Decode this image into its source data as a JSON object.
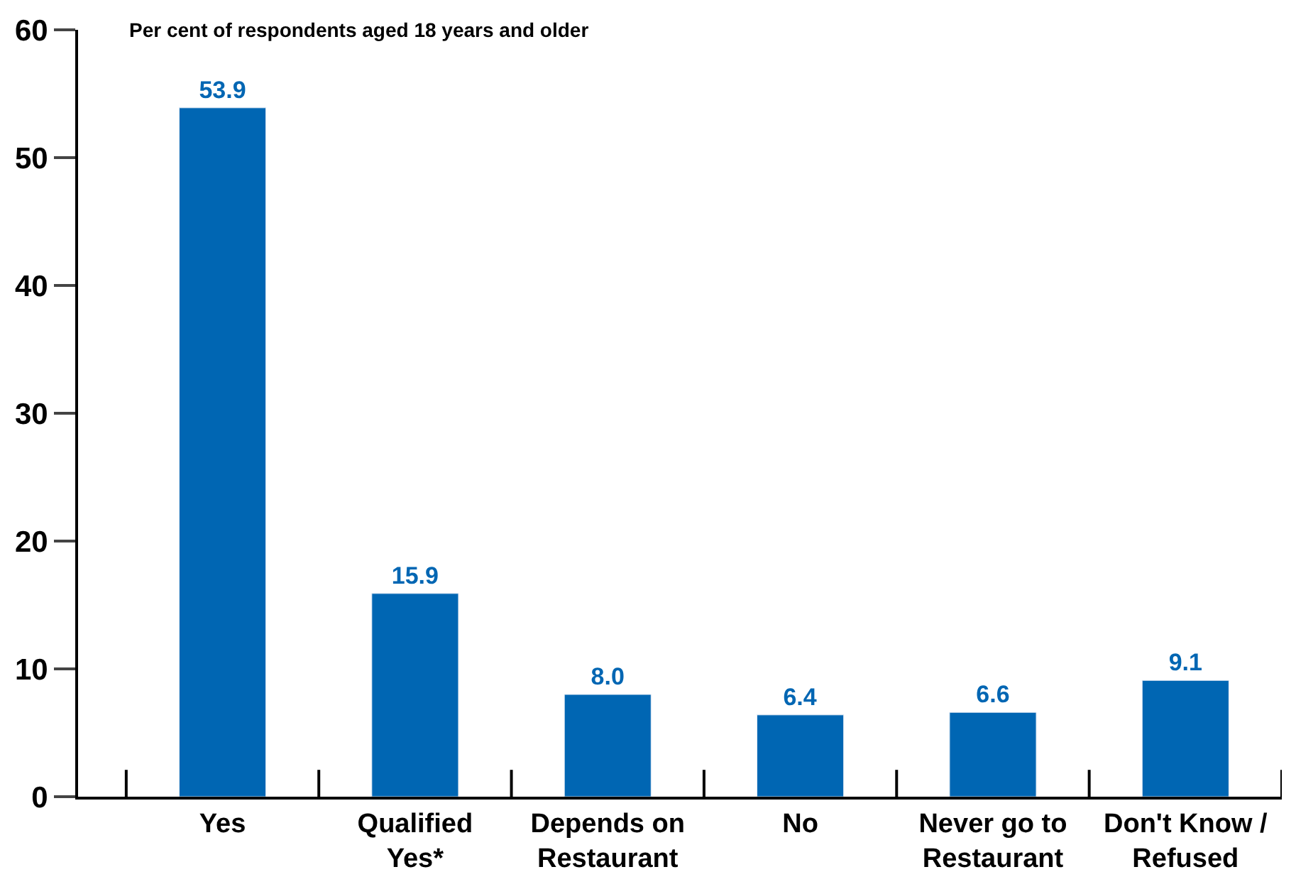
{
  "chart_data": {
    "type": "bar",
    "ylabel": "Per cent of respondents aged 18 years and older",
    "categories": [
      "Yes",
      "Qualified\nYes*",
      "Depends on\nRestaurant",
      "No",
      "Never go to\nRestaurant",
      "Don't Know /\nRefused"
    ],
    "values": [
      53.9,
      15.9,
      8.0,
      6.4,
      6.6,
      9.1
    ],
    "value_labels": [
      "53.9",
      "15.9",
      "8.0",
      "6.4",
      "6.6",
      "9.1"
    ],
    "color": "#0066b3",
    "ylim": [
      0,
      60
    ],
    "yticks": [
      0,
      10,
      20,
      30,
      40,
      50,
      60
    ]
  }
}
